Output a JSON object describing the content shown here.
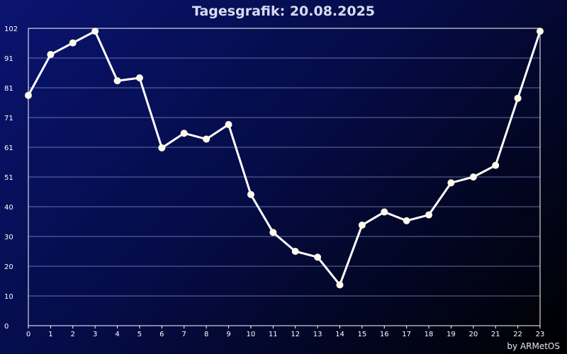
{
  "chart_data": {
    "type": "line",
    "title": "Tagesgrafik: 20.08.2025",
    "xlabel": "",
    "ylabel": "",
    "categories": [
      "0",
      "1",
      "2",
      "3",
      "4",
      "5",
      "6",
      "7",
      "8",
      "9",
      "10",
      "11",
      "12",
      "13",
      "14",
      "15",
      "16",
      "17",
      "18",
      "19",
      "20",
      "21",
      "22",
      "23"
    ],
    "y_ticks": [
      "0",
      "10",
      "20",
      "30",
      "40",
      "51",
      "61",
      "71",
      "81",
      "91",
      "102"
    ],
    "ylim": [
      0,
      102
    ],
    "series": [
      {
        "values": [
          79,
          93,
          97,
          101,
          84,
          85,
          61,
          66,
          64,
          69,
          45,
          32,
          25.5,
          23.5,
          14,
          34.5,
          39,
          36,
          38,
          49,
          51,
          55,
          78,
          101
        ]
      }
    ],
    "grid": true,
    "colors": {
      "line": "#ffffff",
      "marker": "#fffbe8",
      "grid": "#8a8fc8",
      "axis": "#ffffff"
    }
  },
  "footer": {
    "credit": "by ARMetOS"
  }
}
